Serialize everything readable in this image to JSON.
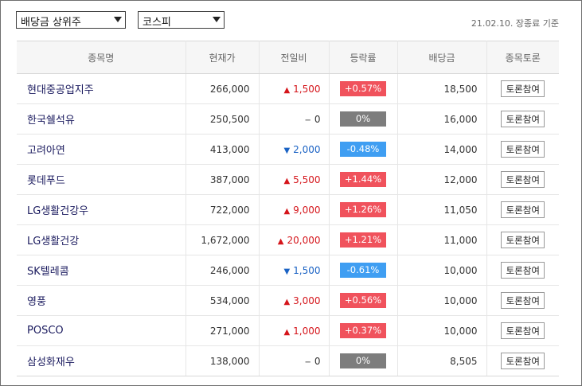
{
  "filters": {
    "sort_select": "배당금 상위주",
    "market_select": "코스피",
    "date_text": "21.02.10. 장종료 기준"
  },
  "table": {
    "headers": [
      "종목명",
      "현재가",
      "전일비",
      "등락률",
      "배당금",
      "종목토론"
    ],
    "button_label": "토론참여",
    "rows": [
      {
        "name": "현대중공업지주",
        "price": "266,000",
        "change": "1,500",
        "dir": "up",
        "rate": "+0.57%",
        "dividend": "18,500"
      },
      {
        "name": "한국쉘석유",
        "price": "250,500",
        "change": "0",
        "dir": "flat",
        "rate": "0%",
        "dividend": "16,000"
      },
      {
        "name": "고려아연",
        "price": "413,000",
        "change": "2,000",
        "dir": "down",
        "rate": "-0.48%",
        "dividend": "14,000"
      },
      {
        "name": "롯데푸드",
        "price": "387,000",
        "change": "5,500",
        "dir": "up",
        "rate": "+1.44%",
        "dividend": "12,000"
      },
      {
        "name": "LG생활건강우",
        "price": "722,000",
        "change": "9,000",
        "dir": "up",
        "rate": "+1.26%",
        "dividend": "11,050"
      },
      {
        "name": "LG생활건강",
        "price": "1,672,000",
        "change": "20,000",
        "dir": "up",
        "rate": "+1.21%",
        "dividend": "11,000"
      },
      {
        "name": "SK텔레콤",
        "price": "246,000",
        "change": "1,500",
        "dir": "down",
        "rate": "-0.61%",
        "dividend": "10,000"
      },
      {
        "name": "영풍",
        "price": "534,000",
        "change": "3,000",
        "dir": "up",
        "rate": "+0.56%",
        "dividend": "10,000"
      },
      {
        "name": "POSCO",
        "price": "271,000",
        "change": "1,000",
        "dir": "up",
        "rate": "+0.37%",
        "dividend": "10,000"
      },
      {
        "name": "삼성화재우",
        "price": "138,000",
        "change": "0",
        "dir": "flat",
        "rate": "0%",
        "dividend": "8,505"
      }
    ]
  },
  "colors": {
    "up": "#d5151b",
    "down": "#1a62c4",
    "badge_up": "#f0525c",
    "badge_down": "#3f9ef2",
    "badge_flat": "#7d7d7d"
  },
  "icons": {
    "up": "triangle-up-icon",
    "down": "triangle-down-icon",
    "flat": "dash-icon"
  }
}
